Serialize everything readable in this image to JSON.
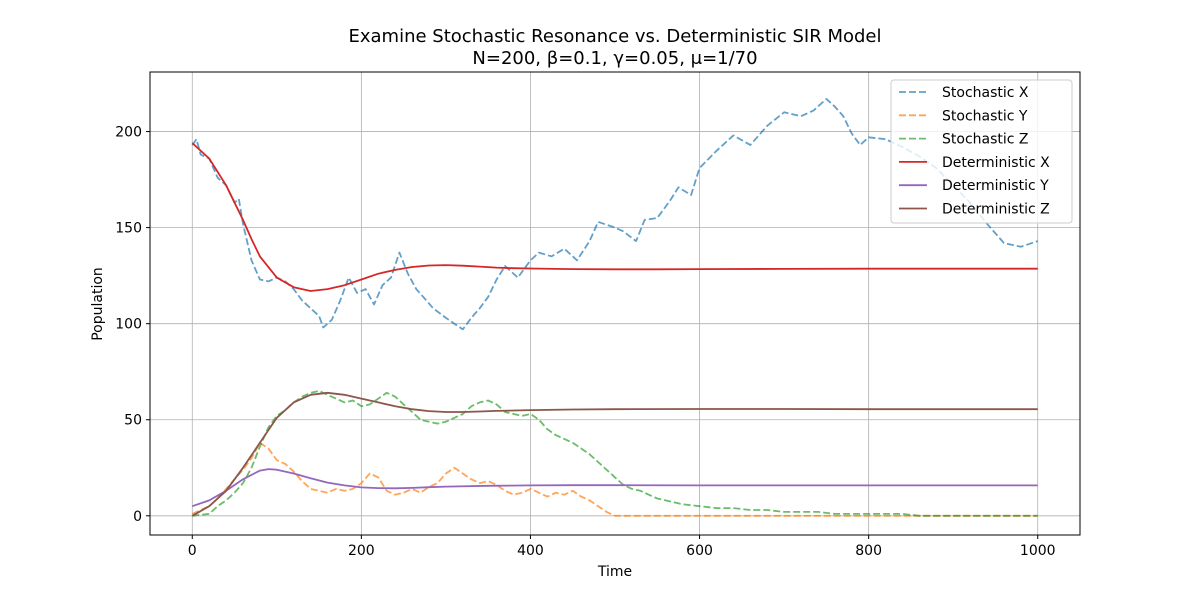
{
  "chart_data": {
    "type": "line",
    "title": "Examine Stochastic Resonance vs. Deterministic SIR Model",
    "subtitle": "N=200, β=0.1, γ=0.05, μ=1/70",
    "xlabel": "Time",
    "ylabel": "Population",
    "xlim": [
      -50,
      1050
    ],
    "ylim": [
      -10,
      231
    ],
    "xticks": [
      0,
      200,
      400,
      600,
      800,
      1000
    ],
    "yticks": [
      0,
      50,
      100,
      150,
      200
    ],
    "grid": true,
    "legend_position": "top-right",
    "series": [
      {
        "name": "Stochastic X",
        "style": "dashed",
        "color": "#1f77b4",
        "alpha": 0.7,
        "x": [
          0,
          5,
          10,
          20,
          30,
          40,
          50,
          55,
          60,
          70,
          80,
          90,
          100,
          110,
          120,
          130,
          140,
          150,
          155,
          165,
          175,
          185,
          195,
          205,
          215,
          225,
          235,
          245,
          255,
          265,
          275,
          285,
          300,
          310,
          320,
          330,
          340,
          350,
          360,
          370,
          385,
          400,
          410,
          425,
          440,
          455,
          470,
          480,
          500,
          510,
          525,
          535,
          550,
          565,
          575,
          590,
          600,
          620,
          640,
          660,
          680,
          700,
          720,
          735,
          750,
          760,
          770,
          780,
          790,
          800,
          820,
          840,
          860,
          880,
          900,
          920,
          940,
          960,
          980,
          1000
        ],
        "y": [
          193,
          196,
          188,
          186,
          176,
          172,
          163,
          165,
          152,
          133,
          123,
          122,
          124,
          122,
          118,
          112,
          108,
          104,
          98,
          102,
          112,
          124,
          116,
          118,
          110,
          120,
          124,
          137,
          126,
          118,
          113,
          108,
          103,
          100,
          97,
          103,
          108,
          114,
          123,
          130,
          124,
          133,
          137,
          135,
          139,
          133,
          143,
          153,
          150,
          148,
          143,
          154,
          155,
          164,
          171,
          167,
          181,
          190,
          198,
          193,
          203,
          210,
          208,
          211,
          217,
          213,
          208,
          199,
          193,
          197,
          196,
          192,
          187,
          181,
          172,
          163,
          152,
          142,
          140,
          143
        ]
      },
      {
        "name": "Stochastic Y",
        "style": "dashed",
        "color": "#ff7f0e",
        "alpha": 0.7,
        "x": [
          0,
          10,
          20,
          30,
          40,
          50,
          60,
          70,
          80,
          90,
          100,
          110,
          120,
          130,
          140,
          150,
          160,
          170,
          180,
          190,
          200,
          210,
          220,
          230,
          240,
          250,
          260,
          270,
          280,
          290,
          300,
          310,
          320,
          330,
          340,
          350,
          360,
          370,
          380,
          390,
          400,
          410,
          420,
          430,
          440,
          450,
          460,
          470,
          480,
          490,
          500,
          600,
          700,
          800,
          900,
          1000
        ],
        "y": [
          1,
          3,
          5,
          9,
          14,
          19,
          24,
          30,
          38,
          35,
          29,
          27,
          23,
          18,
          14,
          13,
          12,
          14,
          13,
          14,
          17,
          22,
          20,
          13,
          11,
          12,
          14,
          12,
          15,
          17,
          22,
          25,
          22,
          19,
          17,
          18,
          16,
          13,
          11,
          12,
          14,
          12,
          10,
          12,
          11,
          13,
          10,
          8,
          5,
          2,
          0,
          0,
          0,
          0,
          0,
          0
        ]
      },
      {
        "name": "Stochastic Z",
        "style": "dashed",
        "color": "#2ca02c",
        "alpha": 0.7,
        "x": [
          0,
          20,
          30,
          40,
          50,
          60,
          70,
          80,
          90,
          100,
          110,
          120,
          130,
          140,
          150,
          160,
          170,
          180,
          190,
          200,
          210,
          220,
          230,
          240,
          250,
          260,
          270,
          280,
          290,
          300,
          310,
          320,
          330,
          340,
          350,
          360,
          370,
          380,
          390,
          400,
          410,
          420,
          430,
          440,
          450,
          460,
          470,
          480,
          490,
          500,
          510,
          520,
          530,
          540,
          550,
          560,
          580,
          600,
          620,
          640,
          660,
          680,
          700,
          720,
          740,
          760,
          780,
          800,
          820,
          840,
          860,
          880,
          900,
          1000
        ],
        "y": [
          0,
          1,
          5,
          8,
          12,
          17,
          25,
          36,
          46,
          52,
          55,
          59,
          62,
          64,
          65,
          63,
          61,
          59,
          60,
          57,
          58,
          61,
          64,
          62,
          58,
          54,
          50,
          49,
          48,
          49,
          51,
          53,
          57,
          59,
          60,
          58,
          54,
          53,
          52,
          53,
          50,
          45,
          42,
          40,
          38,
          35,
          32,
          28,
          24,
          20,
          16,
          14,
          13,
          11,
          9,
          8,
          6,
          5,
          4,
          4,
          3,
          3,
          2,
          2,
          2,
          1,
          1,
          1,
          1,
          1,
          0,
          0,
          0,
          0
        ]
      },
      {
        "name": "Deterministic X",
        "style": "solid",
        "color": "#d62728",
        "alpha": 1,
        "x": [
          0,
          20,
          40,
          60,
          70,
          80,
          100,
          120,
          140,
          160,
          180,
          200,
          220,
          240,
          260,
          280,
          300,
          320,
          340,
          360,
          380,
          400,
          450,
          500,
          550,
          600,
          700,
          800,
          900,
          1000
        ],
        "y": [
          194,
          186,
          172,
          154,
          144,
          135,
          124,
          119,
          117,
          118,
          120,
          123,
          126,
          128,
          129.5,
          130.3,
          130.5,
          130.2,
          129.7,
          129.2,
          128.9,
          128.7,
          128.4,
          128.3,
          128.3,
          128.4,
          128.5,
          128.6,
          128.6,
          128.6
        ]
      },
      {
        "name": "Deterministic Y",
        "style": "solid",
        "color": "#9467bd",
        "alpha": 1,
        "x": [
          0,
          20,
          40,
          60,
          80,
          90,
          100,
          120,
          140,
          160,
          180,
          200,
          220,
          240,
          260,
          280,
          300,
          350,
          400,
          450,
          500,
          600,
          700,
          800,
          900,
          1000
        ],
        "y": [
          5,
          8,
          13,
          19,
          23.5,
          24.3,
          24,
          22,
          19.5,
          17.3,
          15.8,
          14.8,
          14.4,
          14.3,
          14.5,
          14.9,
          15.2,
          15.6,
          15.8,
          15.9,
          15.9,
          15.8,
          15.8,
          15.8,
          15.8,
          15.8
        ]
      },
      {
        "name": "Deterministic Z",
        "style": "solid",
        "color": "#8c564b",
        "alpha": 1,
        "x": [
          0,
          20,
          40,
          60,
          80,
          100,
          120,
          140,
          160,
          180,
          200,
          220,
          240,
          260,
          280,
          300,
          320,
          340,
          360,
          400,
          450,
          500,
          600,
          700,
          800,
          900,
          1000
        ],
        "y": [
          0,
          5,
          13,
          25,
          38,
          51,
          59,
          63,
          64,
          63,
          61,
          59,
          57,
          55.5,
          54.5,
          54,
          54,
          54.3,
          54.6,
          55,
          55.3,
          55.5,
          55.6,
          55.6,
          55.5,
          55.5,
          55.5
        ]
      }
    ]
  }
}
